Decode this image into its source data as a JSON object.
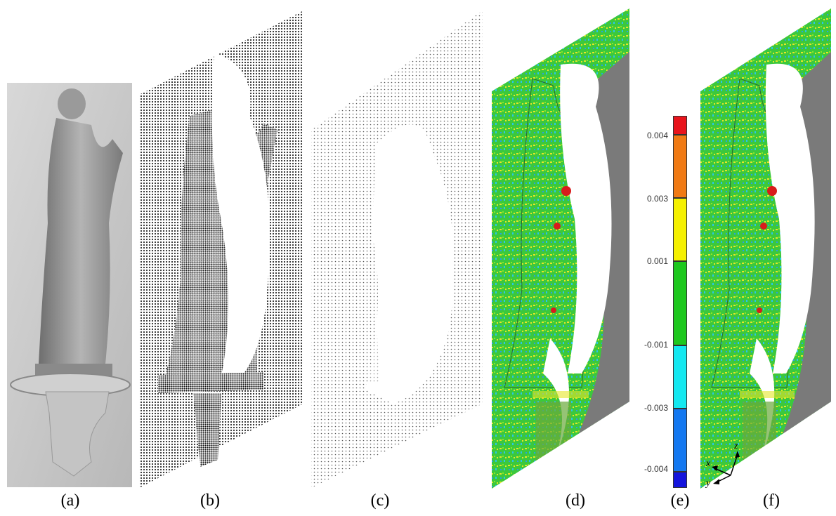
{
  "captions": {
    "a": "(a)",
    "b": "(b)",
    "c": "(c)",
    "d": "(d)",
    "e": "(e)",
    "f": "(f)"
  },
  "colorbar": {
    "ticks": [
      "0.004",
      "0.003",
      "0.001",
      "-0.001",
      "-0.003",
      "-0.004"
    ],
    "colors": [
      "#e8141c",
      "#f07a14",
      "#f5f000",
      "#1ec81e",
      "#14e8f0",
      "#1478f0",
      "#1414dc"
    ]
  },
  "axes": {
    "x": "x",
    "y": "y",
    "z": "z"
  },
  "palette": {
    "photo_bg": "#cfcfcf",
    "statue_gray": "#9a9a9a",
    "wall_gray": "#7a7a7a",
    "green": "#3cc83c",
    "yellow": "#e6e628",
    "cyan": "#28c8e6",
    "red": "#d81c1c"
  }
}
